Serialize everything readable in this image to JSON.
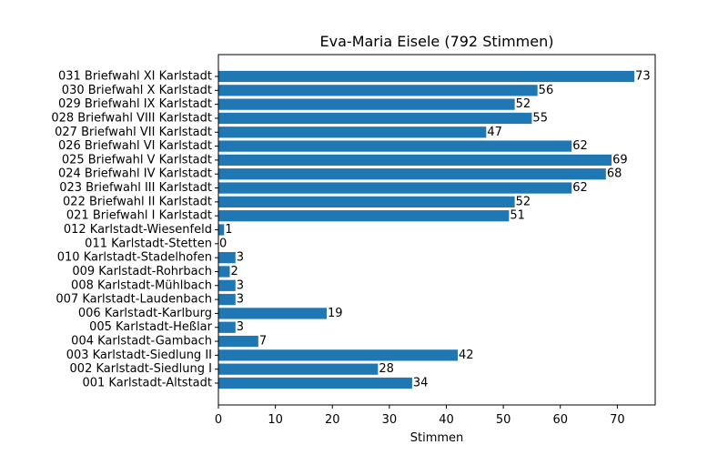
{
  "chart_data": {
    "type": "bar",
    "orientation": "horizontal",
    "title": "Eva-Maria Eisele (792 Stimmen)",
    "xlabel": "Stimmen",
    "ylabel": "",
    "xlim": [
      0,
      76.65
    ],
    "xticks": [
      0,
      10,
      20,
      30,
      40,
      50,
      60,
      70
    ],
    "bar_color": "#1f77b4",
    "grid": false,
    "categories": [
      "001 Karlstadt-Altstadt",
      "002 Karlstadt-Siedlung I",
      "003 Karlstadt-Siedlung II",
      "004 Karlstadt-Gambach",
      "005 Karlstadt-Heßlar",
      "006 Karlstadt-Karlburg",
      "007 Karlstadt-Laudenbach",
      "008 Karlstadt-Mühlbach",
      "009 Karlstadt-Rohrbach",
      "010 Karlstadt-Stadelhofen",
      "011 Karlstadt-Stetten",
      "012 Karlstadt-Wiesenfeld",
      "021 Briefwahl I Karlstadt",
      "022 Briefwahl II Karlstadt",
      "023 Briefwahl III Karlstadt",
      "024 Briefwahl IV Karlstadt",
      "025 Briefwahl V Karlstadt",
      "026 Briefwahl VI Karlstadt",
      "027 Briefwahl VII Karlstadt",
      "028 Briefwahl VIII Karlstadt",
      "029 Briefwahl IX Karlstadt",
      "030 Briefwahl X Karlstadt",
      "031 Briefwahl XI Karlstadt"
    ],
    "values": [
      34,
      28,
      42,
      7,
      3,
      19,
      3,
      3,
      2,
      3,
      0,
      1,
      51,
      52,
      62,
      68,
      69,
      62,
      47,
      55,
      52,
      56,
      73
    ]
  }
}
